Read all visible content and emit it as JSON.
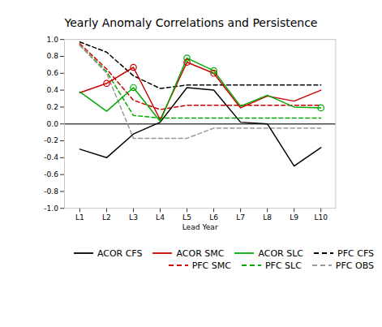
{
  "chart_data": {
    "type": "line",
    "title": "Yearly Anomaly Correlations and Persistence",
    "xlabel": "Lead Year",
    "categories": [
      "L1",
      "L2",
      "L3",
      "L4",
      "L5",
      "L6",
      "L7",
      "L8",
      "L9",
      "L10"
    ],
    "ylim": [
      -1.0,
      1.0
    ],
    "yticks": [
      {
        "value": -1.0,
        "label": "-1.0"
      },
      -0.8,
      -0.6,
      -0.4,
      -0.2,
      {
        "value": 0.0,
        "label": "0.0"
      },
      0.2,
      0.4,
      0.6,
      0.8,
      {
        "value": 1.0,
        "label": "1.0"
      }
    ],
    "hlines": [
      0
    ],
    "grid": false,
    "legend": "lower right",
    "series": [
      {
        "name": "ACOR CFS",
        "color": "#000000",
        "line_style": "solid",
        "values": [
          -0.3,
          -0.4,
          -0.12,
          0.02,
          0.43,
          0.4,
          0.02,
          0.0,
          -0.5,
          -0.28
        ]
      },
      {
        "name": "ACOR SMC",
        "color": "#cc0000",
        "line_style": "solid",
        "marker": "circle",
        "significant": [
          1,
          2,
          4,
          5
        ],
        "values": [
          0.37,
          0.48,
          0.67,
          0.05,
          0.73,
          0.6,
          0.19,
          0.33,
          0.27,
          0.4
        ]
      },
      {
        "name": "ACOR SLC",
        "color": "#00aa00",
        "line_style": "solid",
        "marker": "circle",
        "significant": [
          2,
          4,
          5,
          9
        ],
        "values": [
          0.38,
          0.15,
          0.43,
          0.03,
          0.78,
          0.63,
          0.21,
          0.34,
          0.2,
          0.19
        ]
      },
      {
        "name": "PFC CFS",
        "color": "#000000",
        "line_style": "dashed",
        "values": [
          0.97,
          0.85,
          0.57,
          0.42,
          0.46,
          0.46,
          0.46,
          0.46,
          0.46,
          0.46
        ]
      },
      {
        "name": "PFC SMC",
        "color": "#cc0000",
        "line_style": "dashed",
        "values": [
          0.95,
          0.65,
          0.28,
          0.17,
          0.22,
          0.22,
          0.22,
          0.22,
          0.22,
          0.22
        ]
      },
      {
        "name": "PFC SLC",
        "color": "#00aa00",
        "line_style": "dashed",
        "values": [
          0.93,
          0.62,
          0.1,
          0.07,
          0.07,
          0.07,
          0.07,
          0.07,
          0.07,
          0.07
        ]
      },
      {
        "name": "PFC OBS",
        "color": "#999999",
        "line_style": "dashed",
        "values": [
          0.93,
          0.6,
          -0.17,
          -0.17,
          -0.17,
          -0.05,
          -0.05,
          -0.05,
          -0.05,
          -0.05
        ]
      }
    ]
  }
}
